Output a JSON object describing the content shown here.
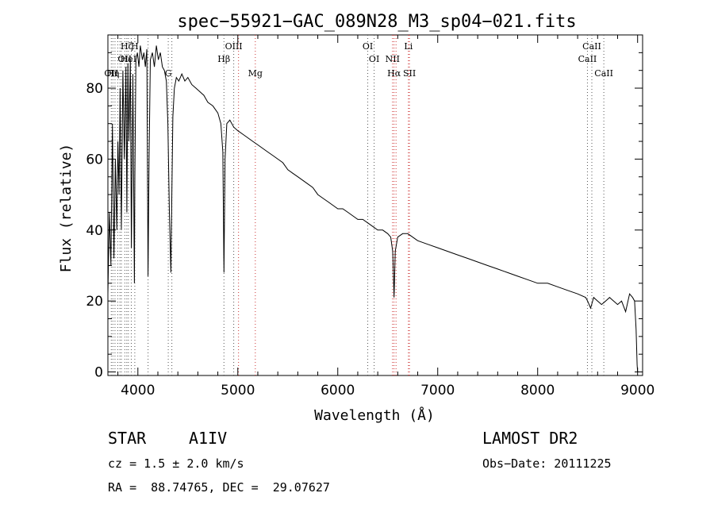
{
  "chart_data": {
    "type": "line",
    "title": "spec−55921−GAC_089N28_M3_sp04−021.fits",
    "xlabel": "Wavelength (Å)",
    "ylabel": "Flux (relative)",
    "xlim": [
      3700,
      9050
    ],
    "ylim": [
      -1,
      95
    ],
    "xticks": [
      4000,
      5000,
      6000,
      7000,
      8000,
      9000
    ],
    "yticks": [
      0,
      20,
      40,
      60,
      80
    ],
    "series": [
      {
        "name": "spectrum",
        "x": [
          3700,
          3715,
          3730,
          3745,
          3760,
          3775,
          3790,
          3800,
          3812,
          3822,
          3835,
          3850,
          3865,
          3880,
          3890,
          3900,
          3910,
          3925,
          3935,
          3950,
          3965,
          3970,
          3980,
          3995,
          4010,
          4025,
          4045,
          4060,
          4075,
          4090,
          4102,
          4112,
          4125,
          4145,
          4165,
          4185,
          4205,
          4225,
          4245,
          4265,
          4285,
          4300,
          4315,
          4330,
          4340,
          4350,
          4365,
          4385,
          4410,
          4440,
          4470,
          4500,
          4540,
          4580,
          4620,
          4660,
          4700,
          4750,
          4800,
          4830,
          4850,
          4856,
          4861,
          4866,
          4872,
          4890,
          4920,
          4960,
          5000,
          5050,
          5100,
          5150,
          5200,
          5250,
          5300,
          5350,
          5400,
          5450,
          5500,
          5550,
          5600,
          5650,
          5700,
          5750,
          5800,
          5850,
          5900,
          5950,
          6000,
          6050,
          6100,
          6150,
          6200,
          6250,
          6300,
          6350,
          6400,
          6450,
          6500,
          6530,
          6550,
          6558,
          6563,
          6568,
          6575,
          6600,
          6650,
          6700,
          6750,
          6800,
          6900,
          7000,
          7100,
          7200,
          7300,
          7400,
          7500,
          7600,
          7700,
          7800,
          7900,
          8000,
          8100,
          8200,
          8300,
          8400,
          8480,
          8500,
          8530,
          8560,
          8600,
          8640,
          8680,
          8720,
          8760,
          8800,
          8840,
          8880,
          8920,
          8950,
          8970,
          8985,
          8995,
          9000
        ],
        "values": [
          22,
          45,
          30,
          70,
          32,
          60,
          40,
          65,
          50,
          80,
          40,
          85,
          60,
          86,
          45,
          87,
          65,
          88,
          35,
          84,
          25,
          55,
          88,
          90,
          86,
          92,
          88,
          90,
          86,
          91,
          27,
          60,
          88,
          90,
          86,
          92,
          88,
          90,
          86,
          85,
          82,
          70,
          45,
          28,
          50,
          72,
          80,
          83,
          82,
          84,
          82,
          83,
          81,
          80,
          79,
          78,
          76,
          75,
          73,
          70,
          62,
          45,
          28,
          42,
          60,
          70,
          71,
          69,
          68,
          67,
          66,
          65,
          64,
          63,
          62,
          61,
          60,
          59,
          57,
          56,
          55,
          54,
          53,
          52,
          50,
          49,
          48,
          47,
          46,
          46,
          45,
          44,
          43,
          43,
          42,
          41,
          40,
          40,
          39,
          38,
          34,
          26,
          21,
          26,
          34,
          38,
          39,
          39,
          38,
          37,
          36,
          35,
          34,
          33,
          32,
          31,
          30,
          29,
          28,
          27,
          26,
          25,
          25,
          24,
          23,
          22,
          21,
          20,
          18,
          21,
          20,
          19,
          20,
          21,
          20,
          19,
          20,
          17,
          22,
          21,
          20,
          12,
          2,
          0
        ]
      }
    ],
    "lines": [
      {
        "wave": 3734,
        "color": "#555555",
        "label": "OII",
        "row": 3
      },
      {
        "wave": 3750,
        "color": "#555555",
        "label": "Hη",
        "row": 3
      },
      {
        "wave": 3771,
        "color": "#555555",
        "label": "",
        "row": 0
      },
      {
        "wave": 3798,
        "color": "#555555",
        "label": "",
        "row": 0
      },
      {
        "wave": 3820,
        "color": "#555555",
        "label": "",
        "row": 0
      },
      {
        "wave": 3835,
        "color": "#555555",
        "label": "",
        "row": 0
      },
      {
        "wave": 3869,
        "color": "#555555",
        "label": "OII",
        "row": 2
      },
      {
        "wave": 3889,
        "color": "#555555",
        "label": "Hζ",
        "row": 1
      },
      {
        "wave": 3905,
        "color": "#555555",
        "label": "HeI",
        "row": 2
      },
      {
        "wave": 3934,
        "color": "#555555",
        "label": "",
        "row": 0
      },
      {
        "wave": 3969,
        "color": "#555555",
        "label": "H",
        "row": 1
      },
      {
        "wave": 4102,
        "color": "#555555",
        "label": "",
        "row": 0
      },
      {
        "wave": 4304,
        "color": "#555555",
        "label": "G",
        "row": 3
      },
      {
        "wave": 4340,
        "color": "#555555",
        "label": "",
        "row": 0
      },
      {
        "wave": 4861,
        "color": "#555555",
        "label": "Hβ",
        "row": 2
      },
      {
        "wave": 4959,
        "color": "#555555",
        "label": "OIII",
        "row": 1
      },
      {
        "wave": 5007,
        "color": "#cc3333",
        "label": "",
        "row": 0
      },
      {
        "wave": 5175,
        "color": "#cc3333",
        "label": "Mg",
        "row": 3
      },
      {
        "wave": 6300,
        "color": "#555555",
        "label": "OI",
        "row": 1
      },
      {
        "wave": 6364,
        "color": "#555555",
        "label": "OI",
        "row": 2
      },
      {
        "wave": 6548,
        "color": "#cc3333",
        "label": "NII",
        "row": 2
      },
      {
        "wave": 6563,
        "color": "#cc3333",
        "label": "Hα",
        "row": 3
      },
      {
        "wave": 6583,
        "color": "#cc3333",
        "label": "",
        "row": 0
      },
      {
        "wave": 6707,
        "color": "#cc3333",
        "label": "Li",
        "row": 1
      },
      {
        "wave": 6717,
        "color": "#cc3333",
        "label": "SII",
        "row": 3
      },
      {
        "wave": 8498,
        "color": "#555555",
        "label": "CaII",
        "row": 2
      },
      {
        "wave": 8542,
        "color": "#555555",
        "label": "CaII",
        "row": 1
      },
      {
        "wave": 8662,
        "color": "#555555",
        "label": "CaII",
        "row": 3
      }
    ]
  },
  "info": {
    "object_type": "STAR",
    "subclass": "A1IV",
    "survey": "LAMOST DR2",
    "cz": "cz = 1.5 ± 2.0 km/s",
    "obs_date": "Obs−Date: 20111225",
    "coords": "RA =  88.74765, DEC =  29.07627"
  }
}
